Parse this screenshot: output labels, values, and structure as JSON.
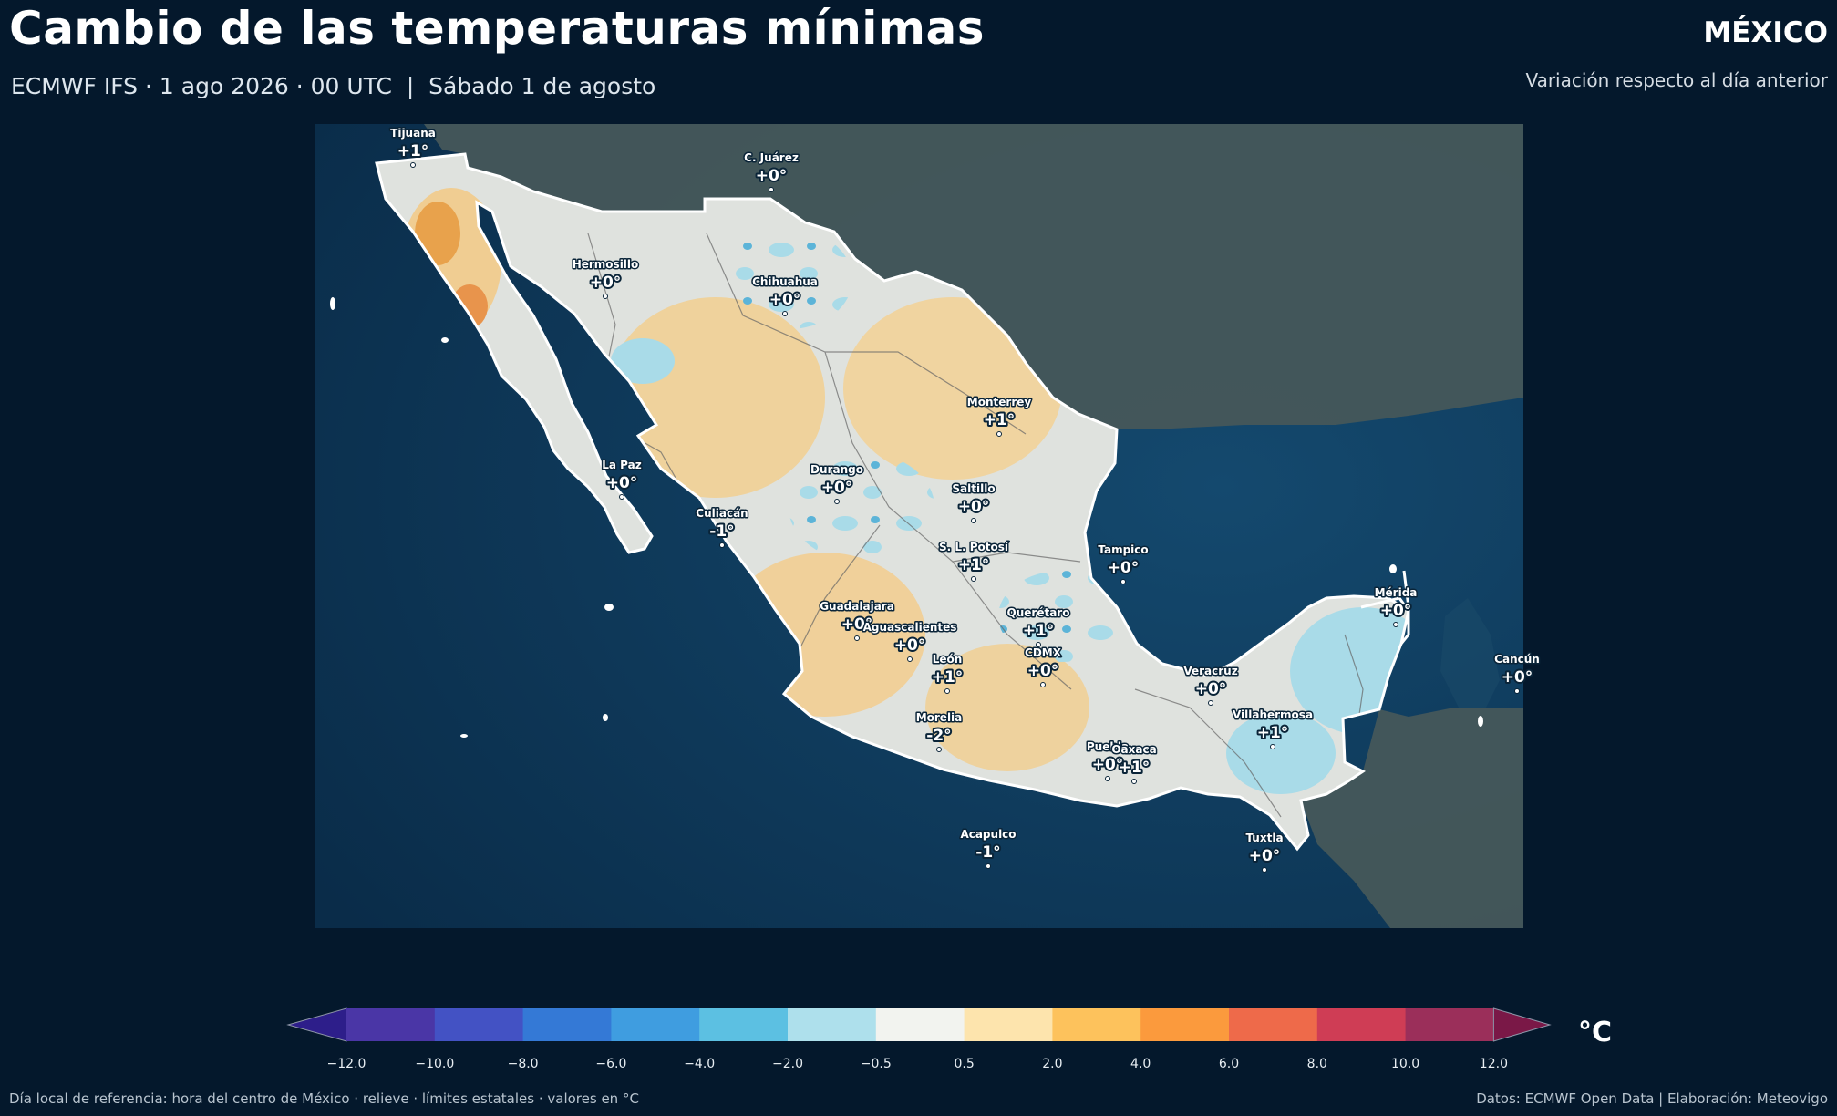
{
  "header": {
    "title": "Cambio de las temperaturas mínimas",
    "subtitle": "ECMWF IFS · 1 ago 2026 · 00 UTC  |  Sábado 1 de agosto",
    "region": "MÉXICO",
    "region_sub": "Variación respecto al día anterior"
  },
  "map": {
    "ocean_color": "#0d3a5c",
    "land_other_color": "#46575a",
    "cities": [
      {
        "name": "Tijuana",
        "value": "+1°"
      },
      {
        "name": "C. Juárez",
        "value": "+0°"
      },
      {
        "name": "Hermosillo",
        "value": "+0°"
      },
      {
        "name": "Chihuahua",
        "value": "+0°"
      },
      {
        "name": "Monterrey",
        "value": "+1°"
      },
      {
        "name": "La Paz",
        "value": "+0°"
      },
      {
        "name": "Durango",
        "value": "+0°"
      },
      {
        "name": "Saltillo",
        "value": "+0°"
      },
      {
        "name": "Culiacán",
        "value": "-1°"
      },
      {
        "name": "S. L. Potosí",
        "value": "+1°"
      },
      {
        "name": "Tampico",
        "value": "+0°"
      },
      {
        "name": "Mérida",
        "value": "+0°"
      },
      {
        "name": "Guadalajara",
        "value": "+0°"
      },
      {
        "name": "Querétaro",
        "value": "+1°"
      },
      {
        "name": "Aguascalientes",
        "value": "+0°"
      },
      {
        "name": "Cancún",
        "value": "+0°"
      },
      {
        "name": "León",
        "value": "+1°"
      },
      {
        "name": "CDMX",
        "value": "+0°"
      },
      {
        "name": "Veracruz",
        "value": "+0°"
      },
      {
        "name": "Villahermosa",
        "value": "+1°"
      },
      {
        "name": "Morelia",
        "value": "-2°"
      },
      {
        "name": "Puebla",
        "value": "+0°"
      },
      {
        "name": "Oaxaca",
        "value": "+1°"
      },
      {
        "name": "Acapulco",
        "value": "-1°"
      },
      {
        "name": "Tuxtla",
        "value": "+0°"
      }
    ]
  },
  "colorbar": {
    "unit": "°C",
    "ticks": [
      "−12.0",
      "−10.0",
      "−8.0",
      "−6.0",
      "−4.0",
      "−2.0",
      "−0.5",
      "0.5",
      "2.0",
      "4.0",
      "6.0",
      "8.0",
      "10.0",
      "12.0"
    ],
    "colors": [
      "#2d1e8a",
      "#4a36a6",
      "#4352c4",
      "#3479d6",
      "#3f9de0",
      "#5cc0e2",
      "#aee0ec",
      "#f2f3ef",
      "#fde4ad",
      "#fdc25c",
      "#fb9a3d",
      "#ee6a4a",
      "#cf3d55",
      "#9b2f5a",
      "#7a1847"
    ]
  },
  "footer": {
    "left": "Día local de referencia: hora del centro de México · relieve · límites estatales · valores en °C",
    "right": "Datos: ECMWF Open Data | Elaboración: Meteovigo"
  }
}
